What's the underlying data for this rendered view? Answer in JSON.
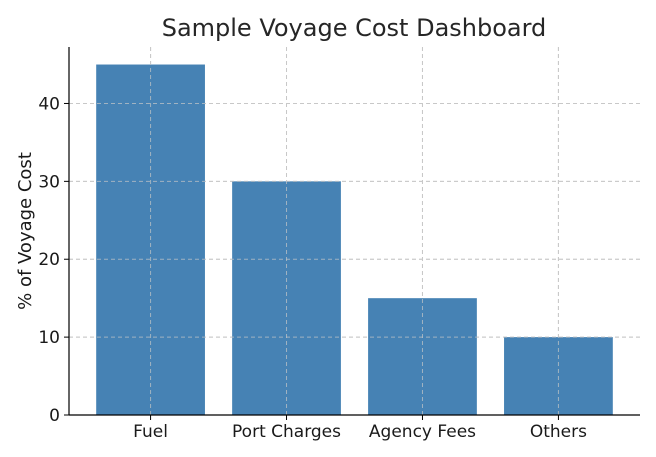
{
  "chart_data": {
    "type": "bar",
    "title": "Sample Voyage Cost Dashboard",
    "xlabel": "",
    "ylabel": "% of Voyage Cost",
    "categories": [
      "Fuel",
      "Port Charges",
      "Agency Fees",
      "Others"
    ],
    "values": [
      45,
      30,
      15,
      10
    ],
    "yticks": [
      0,
      10,
      20,
      30,
      40
    ],
    "ylim": [
      0,
      47.25
    ],
    "grid": true,
    "legend": "none",
    "colors": {
      "bar": "#4682b4",
      "grid": "#c8c8c8",
      "axis": "#000000"
    }
  }
}
